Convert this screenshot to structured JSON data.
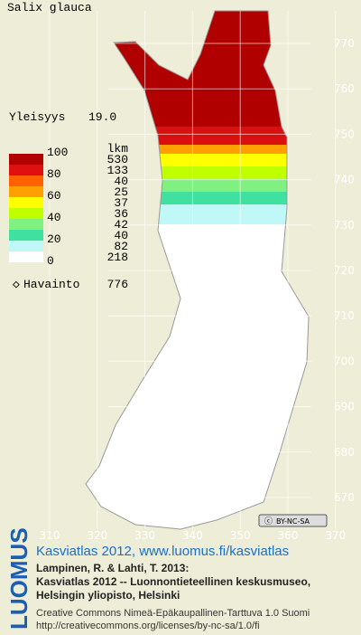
{
  "title": "Salix glauca",
  "frequency": {
    "label": "Yleisyys",
    "value": "19.0"
  },
  "legend": {
    "scale_labels": [
      100,
      80,
      60,
      40,
      20,
      0
    ],
    "count_header": "lkm",
    "classes": [
      {
        "color": "#b00000",
        "count": 530
      },
      {
        "color": "#e01010",
        "count": 133
      },
      {
        "color": "#ff6000",
        "count": 40
      },
      {
        "color": "#ffa000",
        "count": 25
      },
      {
        "color": "#ffff00",
        "count": 37
      },
      {
        "color": "#c0ff00",
        "count": 36
      },
      {
        "color": "#80f080",
        "count": 42
      },
      {
        "color": "#40e0a0",
        "count": 40
      },
      {
        "color": "#c0f8f8",
        "count": 82
      },
      {
        "color": "#ffffff",
        "count": 218
      }
    ]
  },
  "observations": {
    "label": "Havainto",
    "count": 776
  },
  "map": {
    "northing_labels": [
      770,
      760,
      750,
      740,
      730,
      720,
      710,
      700,
      690,
      680,
      670
    ],
    "easting_labels": [
      310,
      320,
      330,
      340,
      350,
      360,
      370
    ]
  },
  "license_badge": "BY-NC-SA",
  "logo": "LUOMUS",
  "credits": {
    "link": "Kasviatlas 2012, www.luomus.fi/kasviatlas",
    "citation": [
      "Lampinen, R. & Lahti, T. 2013:",
      "Kasviatlas 2012 -- Luonnontieteellinen keskusmuseo,",
      "Helsingin yliopisto, Helsinki"
    ],
    "license": [
      "Creative Commons Nimeä-Epäkaupallinen-Tarttuva 1.0 Suomi",
      "http://creativecommons.org/licenses/by-nc-sa/1.0/fi"
    ]
  }
}
